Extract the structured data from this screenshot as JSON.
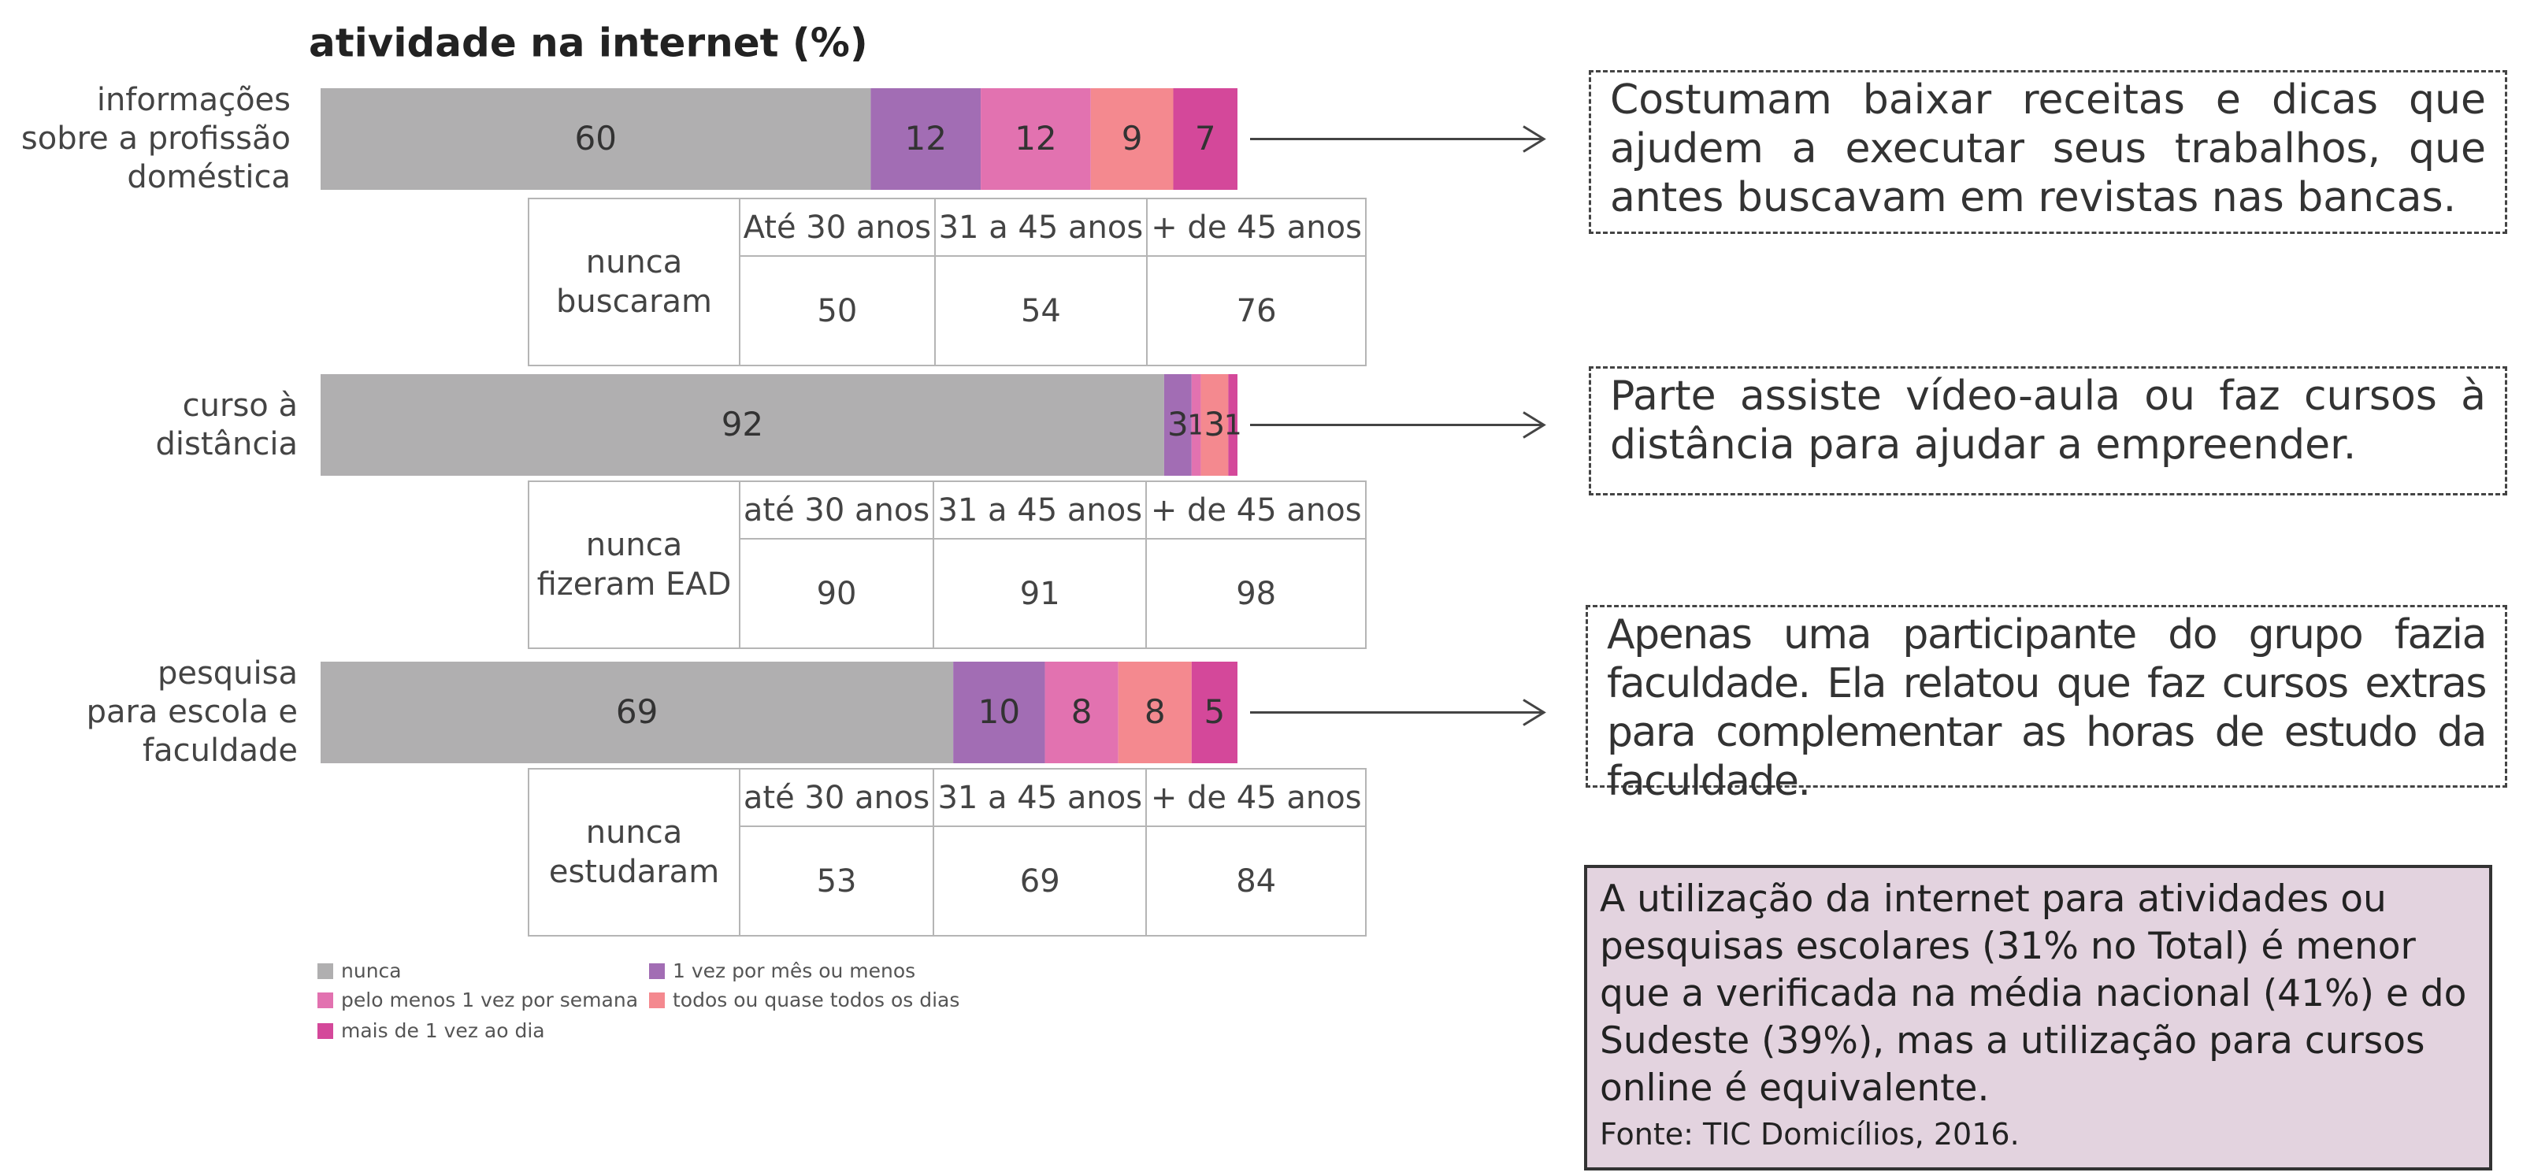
{
  "chart_data": {
    "type": "stacked-barh",
    "title": "atividade na internet (%)",
    "categories": [
      "informações\nsobre a profissão\ndoméstica",
      "curso à\ndistância",
      "pesquisa\npara escola e\nfaculdade"
    ],
    "series": [
      {
        "name": "nunca",
        "color": "#b0afb0",
        "values": [
          60,
          92,
          69
        ]
      },
      {
        "name": "1 vez por mês ou menos",
        "color": "#a26db4",
        "values": [
          12,
          3,
          10
        ]
      },
      {
        "name": "pelo menos 1 vez por semana",
        "color": "#e272b0",
        "values": [
          12,
          1,
          8
        ]
      },
      {
        "name": "todos ou quase todos os dias",
        "color": "#f4898f",
        "values": [
          9,
          3,
          8
        ]
      },
      {
        "name": "mais de 1 vez ao dia",
        "color": "#d4489a",
        "values": [
          7,
          1,
          5
        ]
      }
    ]
  },
  "tables": [
    {
      "label": "nunca\nbuscaram",
      "header": [
        "Até 30 anos",
        "31 a 45 anos",
        "+ de 45 anos"
      ],
      "values": [
        50,
        54,
        76
      ]
    },
    {
      "label": "nunca\nfizeram EAD",
      "header": [
        "até 30 anos",
        "31 a 45 anos",
        "+ de 45 anos"
      ],
      "values": [
        90,
        91,
        98
      ]
    },
    {
      "label": "nunca\nestudaram",
      "header": [
        "até 30 anos",
        "31 a 45 anos",
        "+ de 45 anos"
      ],
      "values": [
        53,
        69,
        84
      ]
    }
  ],
  "notes": [
    "Costumam baixar receitas e dicas que ajudem a executar seus trabalhos, que antes buscavam em revistas nas bancas.",
    "Parte assiste vídeo-aula ou faz cursos à distância para ajudar a empreender.",
    "Apenas uma participante do grupo fazia faculdade. Ela relatou que faz cursos extras para complementar as horas de estudo da faculdade."
  ],
  "summary": {
    "text": "A utilização da internet para atividades ou pesquisas escolares (31% no Total) é menor que a verificada na média nacional (41%) e do Sudeste (39%), mas a utilização para cursos online é equivalente.",
    "source": "Fonte: TIC Domicílios, 2016."
  }
}
